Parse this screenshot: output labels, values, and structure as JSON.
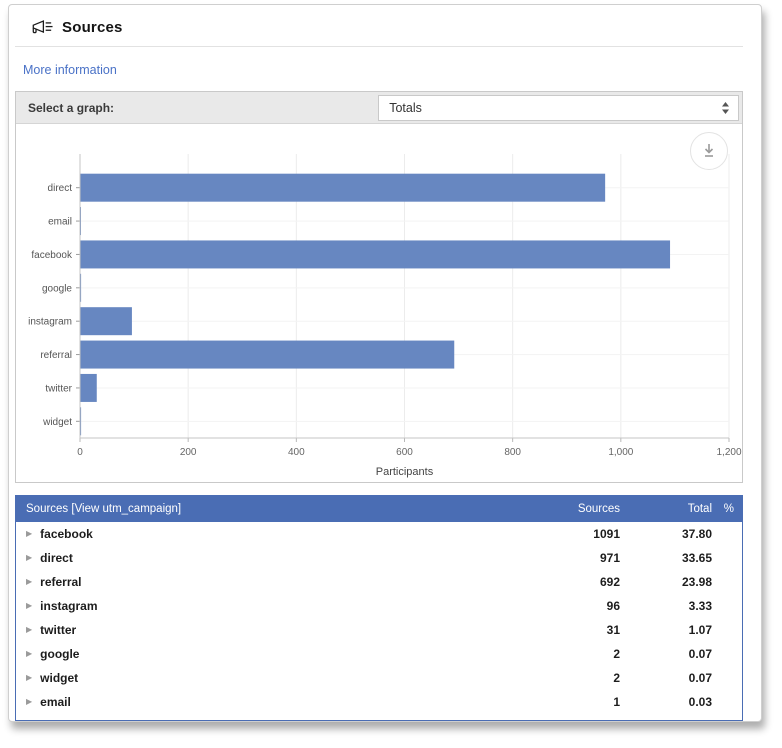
{
  "header": {
    "title": "Sources"
  },
  "links": {
    "more_information": "More information"
  },
  "graph_panel": {
    "select_label": "Select a graph:",
    "select_value": "Totals"
  },
  "chart_data": {
    "type": "bar",
    "orientation": "horizontal",
    "categories": [
      "direct",
      "email",
      "facebook",
      "google",
      "instagram",
      "referral",
      "twitter",
      "widget"
    ],
    "values": [
      971,
      1,
      1091,
      2,
      96,
      692,
      31,
      2
    ],
    "title": "",
    "xlabel": "Participants",
    "ylabel": "",
    "xlim": [
      0,
      1200
    ],
    "xticks": [
      0,
      200,
      400,
      600,
      800,
      1000,
      1200
    ],
    "grid": true,
    "bar_color": "#6787c1",
    "legend": "none"
  },
  "table": {
    "title": "Sources [View utm_campaign]",
    "columns": [
      "Sources",
      "Total",
      "%"
    ],
    "rows": [
      {
        "name": "facebook",
        "sources": "1091",
        "total": "37.80"
      },
      {
        "name": "direct",
        "sources": "971",
        "total": "33.65"
      },
      {
        "name": "referral",
        "sources": "692",
        "total": "23.98"
      },
      {
        "name": "instagram",
        "sources": "96",
        "total": "3.33"
      },
      {
        "name": "twitter",
        "sources": "31",
        "total": "1.07"
      },
      {
        "name": "google",
        "sources": "2",
        "total": "0.07"
      },
      {
        "name": "widget",
        "sources": "2",
        "total": "0.07"
      },
      {
        "name": "email",
        "sources": "1",
        "total": "0.03"
      }
    ],
    "colors": {
      "header_bg": "#4a6db4",
      "border": "#4a6db4"
    }
  }
}
